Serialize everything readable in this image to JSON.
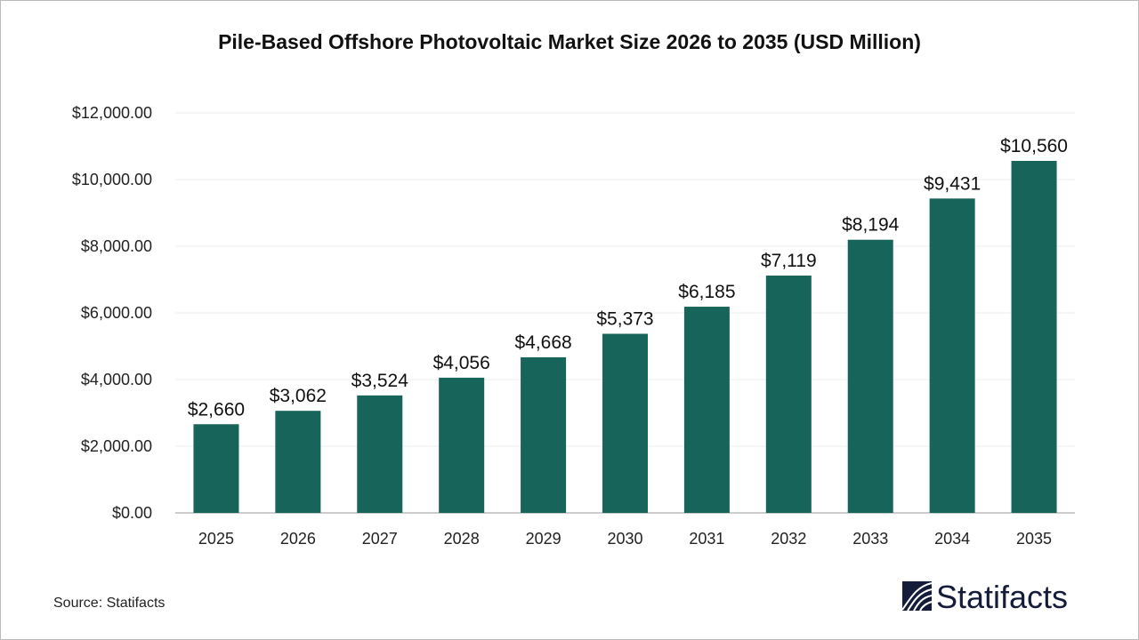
{
  "chart_data": {
    "type": "bar",
    "title": "Pile-Based Offshore Photovoltaic Market Size 2026 to 2035 (USD Million)",
    "xlabel": "",
    "ylabel": "",
    "categories": [
      "2025",
      "2026",
      "2027",
      "2028",
      "2029",
      "2030",
      "2031",
      "2032",
      "2033",
      "2034",
      "2035"
    ],
    "values": [
      2660,
      3062,
      3524,
      4056,
      4668,
      5373,
      6185,
      7119,
      8194,
      9431,
      10560
    ],
    "data_labels": [
      "$2,660",
      "$3,062",
      "$3,524",
      "$4,056",
      "$4,668",
      "$5,373",
      "$6,185",
      "$7,119",
      "$8,194",
      "$9,431",
      "$10,560"
    ],
    "ylim": [
      0,
      12000
    ],
    "yticks": [
      0,
      2000,
      4000,
      6000,
      8000,
      10000,
      12000
    ],
    "ytick_labels": [
      "$0.00",
      "$2,000.00",
      "$4,000.00",
      "$6,000.00",
      "$8,000.00",
      "$10,000.00",
      "$12,000.00"
    ],
    "grid": true,
    "legend": "none",
    "bar_color": "#17645a"
  },
  "source": "Source: Statifacts",
  "logo": {
    "text": "Statifacts",
    "color": "#141c3a"
  }
}
